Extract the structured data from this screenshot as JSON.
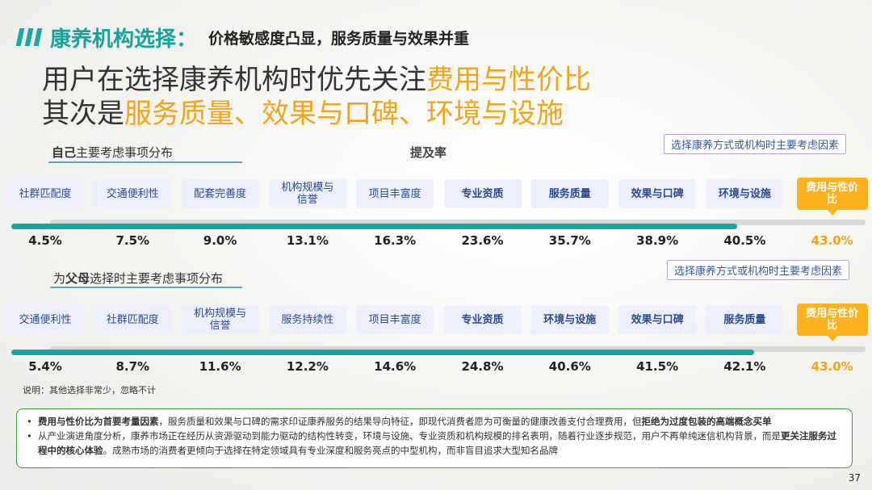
{
  "header": {
    "title": "康养机构选择：",
    "subtitle": "价格敏感度凸显，服务质量与效果并重"
  },
  "headline": {
    "line1_prefix": "用户在选择康养机构时优先关注",
    "line1_highlight": "费用与性价比",
    "line2_prefix": "其次是",
    "line2_highlight": "服务质量、效果与口碑、环境与设施"
  },
  "colors": {
    "accent": "#14a7a0",
    "highlight": "#f5a31a",
    "top_factor_bg": "#ffb21e"
  },
  "chart_data": [
    {
      "type": "bar",
      "title_prefix": "自己",
      "title_rest": "主要考虑事项分布",
      "ylabel": "提及率",
      "legend": "选择康养方式或机构时主要考虑因素",
      "categories": [
        "社群匹配度",
        "交通便利性",
        "配套完善度",
        "机构规模与信誉",
        "项目丰富度",
        "专业资质",
        "服务质量",
        "效果与口碑",
        "环境与设施",
        "费用与性价比"
      ],
      "category_lines": [
        [
          "社群匹配度"
        ],
        [
          "交通便利性"
        ],
        [
          "配套完善度"
        ],
        [
          "机构规模与",
          "信誉"
        ],
        [
          "项目丰富度"
        ],
        [
          "专业资质"
        ],
        [
          "服务质量"
        ],
        [
          "效果与口碑"
        ],
        [
          "环境与设施"
        ],
        [
          "费用与性价",
          "比"
        ]
      ],
      "bold_from": 5,
      "values": [
        4.5,
        7.5,
        9.0,
        13.1,
        16.3,
        23.6,
        35.7,
        38.9,
        40.5,
        43.0
      ],
      "labels": [
        "4.5%",
        "7.5%",
        "9.0%",
        "13.1%",
        "16.3%",
        "23.6%",
        "35.7%",
        "38.9%",
        "40.5%",
        "43.0%"
      ],
      "fill_fraction": 0.85
    },
    {
      "type": "bar",
      "title_prefix_plain": "为",
      "title_prefix": "父母",
      "title_rest": "选择时主要考虑事项分布",
      "legend": "选择康养方式或机构时主要考虑因素",
      "categories": [
        "交通便利性",
        "社群匹配度",
        "机构规模与信誉",
        "服务持续性",
        "项目丰富度",
        "专业资质",
        "环境与设施",
        "效果与口碑",
        "服务质量",
        "费用与性价比"
      ],
      "category_lines": [
        [
          "交通便利性"
        ],
        [
          "社群匹配度"
        ],
        [
          "机构规模与",
          "信誉"
        ],
        [
          "服务持续性"
        ],
        [
          "项目丰富度"
        ],
        [
          "专业资质"
        ],
        [
          "环境与设施"
        ],
        [
          "效果与口碑"
        ],
        [
          "服务质量"
        ],
        [
          "费用与性价",
          "比"
        ]
      ],
      "bold_from": 5,
      "values": [
        5.4,
        8.7,
        11.6,
        12.2,
        14.6,
        24.8,
        40.6,
        41.5,
        42.1,
        43.0
      ],
      "labels": [
        "5.4%",
        "8.7%",
        "11.6%",
        "12.2%",
        "14.6%",
        "24.8%",
        "40.6%",
        "41.5%",
        "42.1%",
        "43.0%"
      ],
      "fill_fraction": 0.87
    }
  ],
  "note": "说明：其他选择非常少，忽略不计",
  "summary": {
    "b1_bold1": "费用与性价比为首要考量因素",
    "b1_text": "，服务质量和效果与口碑的需求印证康养服务的结果导向特征，即现代消费者愿为可衡量的健康改善支付合理费用，但",
    "b1_bold2": "拒绝为过度包装的高端概念买单",
    "b2_text1": "从产业演进角度分析，康养市场正在经历从资源驱动到能力驱动的结构性转变，环境与设施、专业资质和机构规模的排名表明，随着行业逐步规范，用户不再单纯迷信机构背景，而是",
    "b2_bold": "更关注服务过程中的核心体验",
    "b2_text2": "。成熟市场的消费者更倾向于选择在特定领域具有专业深度和服务亮点的中型机构，而非盲目追求大型知名品牌"
  },
  "page_number": "37"
}
